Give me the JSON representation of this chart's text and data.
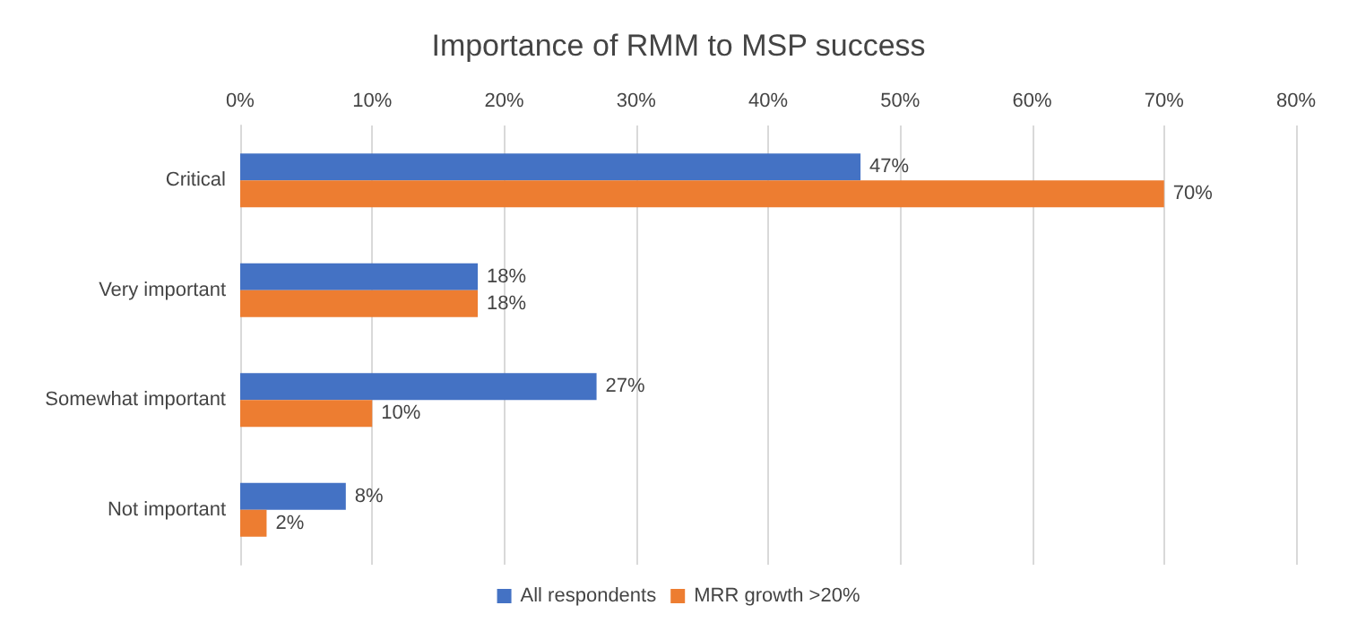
{
  "chart_data": {
    "type": "bar",
    "orientation": "horizontal",
    "title": "Importance of RMM to MSP success",
    "categories": [
      "Critical",
      "Very important",
      "Somewhat important",
      "Not important"
    ],
    "series": [
      {
        "name": "All respondents",
        "color": "#4472c4",
        "values": [
          47,
          18,
          27,
          8
        ],
        "value_labels": [
          "47%",
          "18%",
          "27%",
          "8%"
        ]
      },
      {
        "name": "MRR growth >20%",
        "color": "#ed7d31",
        "values": [
          70,
          18,
          10,
          2
        ],
        "value_labels": [
          "70%",
          "18%",
          "10%",
          "2%"
        ]
      }
    ],
    "xlim": [
      0,
      80
    ],
    "xticks": [
      {
        "value": 0,
        "label": "0%"
      },
      {
        "value": 10,
        "label": "10%"
      },
      {
        "value": 20,
        "label": "20%"
      },
      {
        "value": 30,
        "label": "30%"
      },
      {
        "value": 40,
        "label": "40%"
      },
      {
        "value": 50,
        "label": "50%"
      },
      {
        "value": 60,
        "label": "60%"
      },
      {
        "value": 70,
        "label": "70%"
      },
      {
        "value": 80,
        "label": "80%"
      }
    ],
    "grid": "x",
    "legend": "bottom"
  }
}
